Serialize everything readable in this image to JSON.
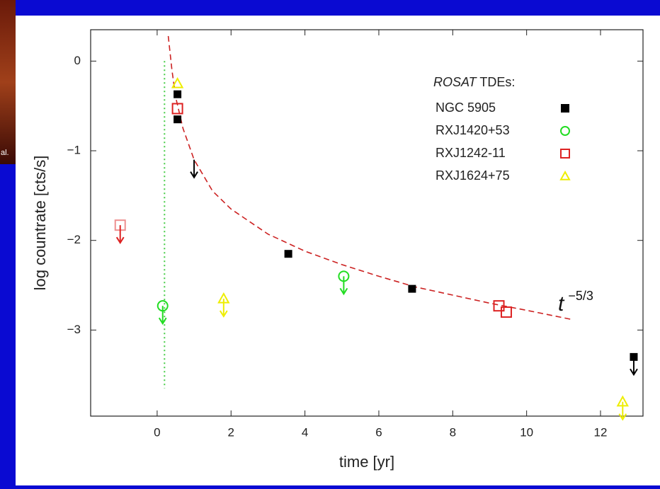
{
  "corner_text": "al.",
  "chart_data": {
    "type": "scatter",
    "xlabel": "time [yr]",
    "ylabel": "log countrate [cts/s]",
    "xlim": [
      -1.8,
      13.15
    ],
    "ylim": [
      -3.96,
      0.35
    ],
    "xticks": [
      0,
      2,
      4,
      6,
      8,
      10,
      12
    ],
    "yticks": [
      0,
      {
        "value": -1,
        "label": "−1"
      },
      {
        "value": -2,
        "label": "−2"
      },
      {
        "value": -3,
        "label": "−3"
      }
    ],
    "grid": false,
    "legend_title": [
      "ROSAT",
      "TDEs:"
    ],
    "legend": "upper right",
    "series": [
      {
        "name": "NGC 5905",
        "color": "#000000",
        "marker": "square",
        "filled": true,
        "x": [
          0.55,
          0.55,
          1.0,
          3.55,
          6.9,
          12.9
        ],
        "values": [
          -0.37,
          -0.65,
          -1.1,
          -2.15,
          -2.54,
          -3.3
        ],
        "upper_limit": [
          false,
          false,
          true,
          false,
          false,
          true
        ]
      },
      {
        "name": "RXJ1420+53",
        "color": "#22dd22",
        "marker": "circle",
        "filled": false,
        "x": [
          0.15,
          5.05
        ],
        "values": [
          -2.73,
          -2.4
        ],
        "upper_limit": [
          true,
          true
        ]
      },
      {
        "name": "RXJ1242-11",
        "color": "#dd2222",
        "marker": "square",
        "filled": false,
        "x": [
          -1.0,
          0.55,
          9.25,
          9.45
        ],
        "values": [
          -1.83,
          -0.53,
          -2.73,
          -2.8
        ],
        "upper_limit": [
          true,
          false,
          false,
          false
        ]
      },
      {
        "name": "RXJ1624+75",
        "color": "#eeee00",
        "marker": "triangle",
        "filled": false,
        "x": [
          0.55,
          1.8,
          12.6
        ],
        "values": [
          -0.25,
          -2.65,
          -3.8
        ],
        "upper_limit": [
          false,
          true,
          true
        ]
      }
    ],
    "lines": [
      {
        "color": "#cc2222",
        "style": "dashed",
        "x": [
          0.3,
          0.4,
          0.5,
          0.7,
          1.0,
          1.5,
          2,
          3,
          4,
          5,
          6,
          7,
          8,
          9,
          10,
          11.2
        ],
        "values": [
          0.28,
          -0.1,
          -0.4,
          -0.75,
          -1.1,
          -1.45,
          -1.65,
          -1.93,
          -2.12,
          -2.27,
          -2.4,
          -2.52,
          -2.61,
          -2.7,
          -2.78,
          -2.88
        ]
      },
      {
        "color": "#44cc44",
        "style": "dotted",
        "x": [
          0.2,
          0.2
        ],
        "values": [
          0,
          -3.65
        ]
      }
    ],
    "annotation": {
      "text": "t",
      "superscript": "−5/3",
      "x": 10.85,
      "y": -2.72
    }
  }
}
